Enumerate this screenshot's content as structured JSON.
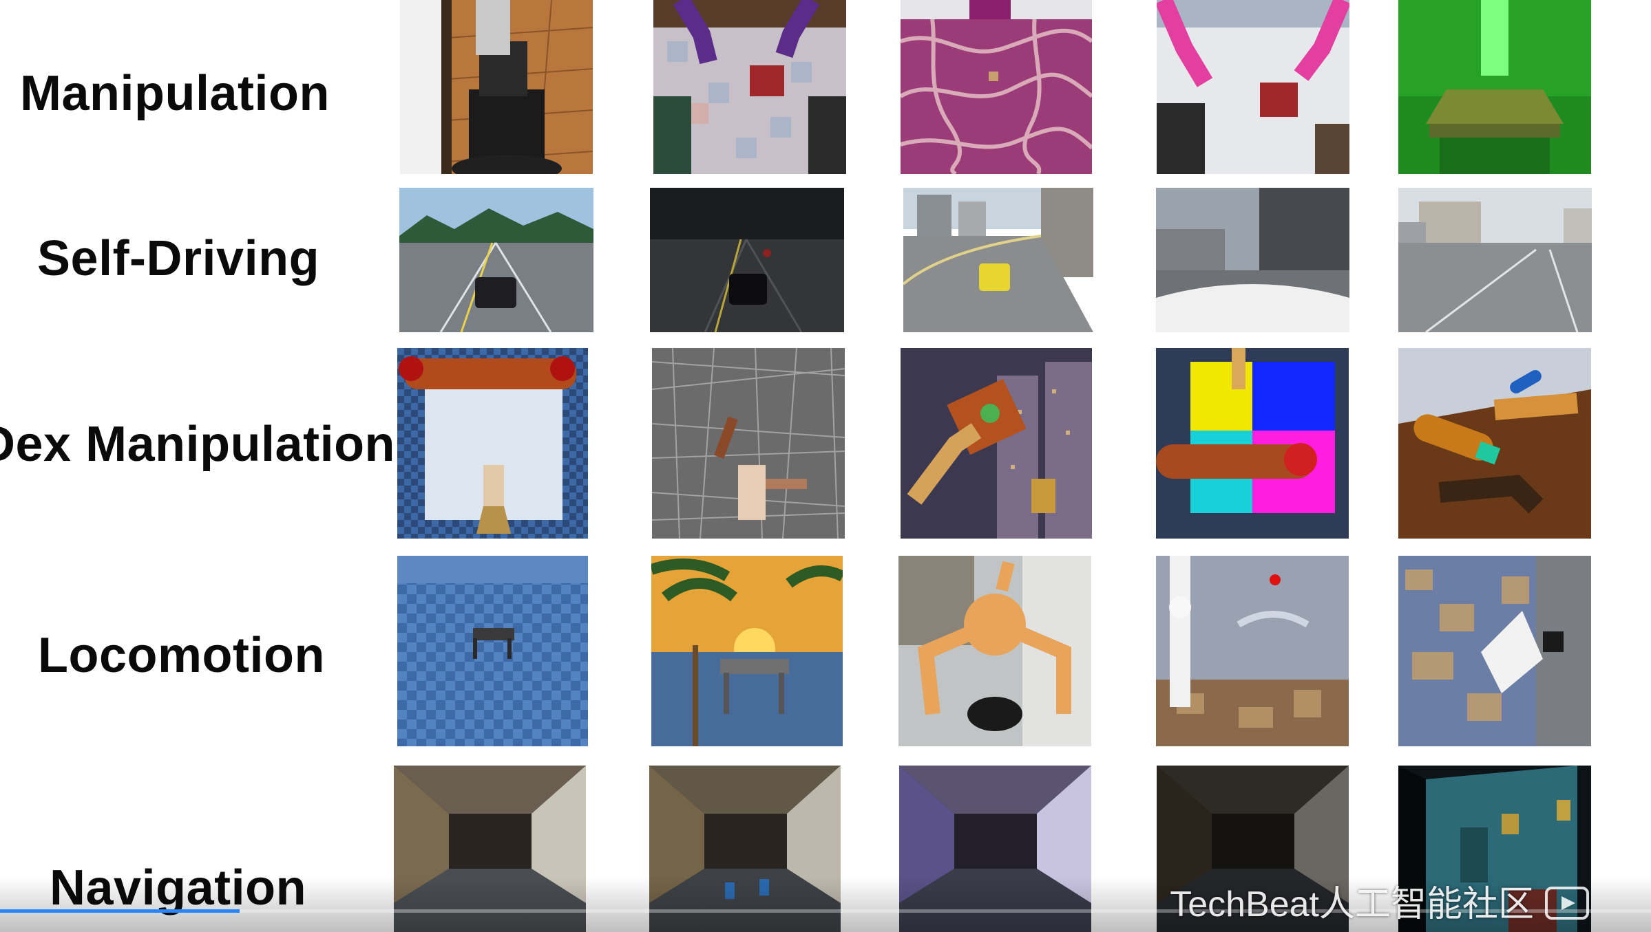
{
  "rows": [
    {
      "label": "Manipulation"
    },
    {
      "label": "Self-Driving"
    },
    {
      "label": "Dex Manipulation"
    },
    {
      "label": "Locomotion"
    },
    {
      "label": "Navigation"
    }
  ],
  "watermark": {
    "text": "TechBeat人工智能社区"
  },
  "player": {
    "progress_fraction": 0.145
  },
  "colors": {
    "label": "#0a0a0a",
    "progress": "#2a86ff"
  }
}
